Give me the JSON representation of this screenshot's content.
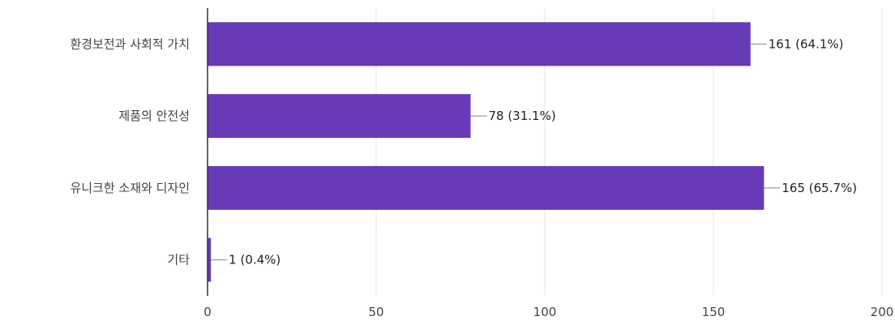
{
  "chart_data": {
    "type": "bar",
    "orientation": "horizontal",
    "categories": [
      "환경보전과 사회적 가치",
      "제품의 안전성",
      "유니크한 소재와 디자인",
      "기타"
    ],
    "values": [
      161,
      78,
      165,
      1
    ],
    "value_labels": [
      "161 (64.1%)",
      "78 (31.1%)",
      "165 (65.7%)",
      "1 (0.4%)"
    ],
    "xlim": [
      0,
      200
    ],
    "x_ticks": [
      0,
      50,
      100,
      150,
      200
    ],
    "bar_color": "#673ab7",
    "grid": true,
    "title": "",
    "xlabel": "",
    "ylabel": ""
  }
}
